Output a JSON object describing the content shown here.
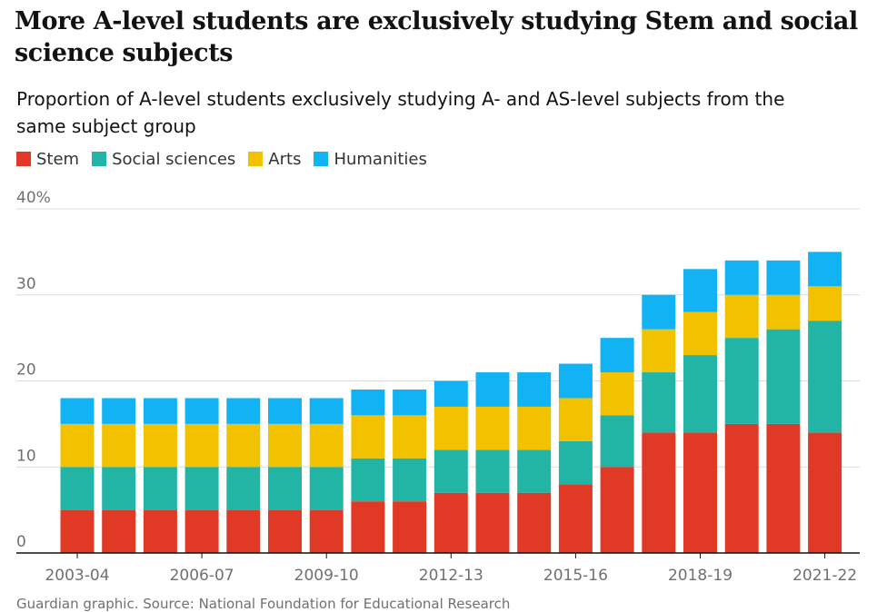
{
  "header": {
    "title": "More A-level students are exclusively studying Stem and social science subjects",
    "subtitle": "Proportion of A-level students exclusively studying A- and AS-level subjects from the same subject group"
  },
  "source": "Guardian graphic. Source: National Foundation for Educational Research",
  "colors": {
    "stem": "#e03a27",
    "social_sciences": "#22b5a6",
    "arts": "#f2c100",
    "humanities": "#12b3f5",
    "grid": "#dcdcdc",
    "axis": "#121212"
  },
  "chart_data": {
    "type": "bar",
    "stacked": true,
    "title": "More A-level students are exclusively studying Stem and social science subjects",
    "subtitle": "Proportion of A-level students exclusively studying A- and AS-level subjects from the same subject group",
    "xlabel": "",
    "ylabel": "",
    "ylim": [
      0,
      40
    ],
    "yticks": [
      "0",
      "10",
      "20",
      "30",
      "40%"
    ],
    "ytick_values": [
      0,
      10,
      20,
      30,
      40
    ],
    "grid": true,
    "legend_position": "top-left",
    "categories": [
      "2003-04",
      "2004-05",
      "2005-06",
      "2006-07",
      "2007-08",
      "2008-09",
      "2009-10",
      "2010-11",
      "2011-12",
      "2012-13",
      "2013-14",
      "2014-15",
      "2015-16",
      "2016-17",
      "2017-18",
      "2018-19",
      "2019-20",
      "2020-21",
      "2021-22"
    ],
    "xtick_labels": [
      "2003-04",
      "2006-07",
      "2009-10",
      "2012-13",
      "2015-16",
      "2018-19",
      "2021-22"
    ],
    "xtick_indices": [
      0,
      3,
      6,
      9,
      12,
      15,
      18
    ],
    "series": [
      {
        "name": "Stem",
        "color_key": "stem",
        "values": [
          5,
          5,
          5,
          5,
          5,
          5,
          5,
          6,
          6,
          7,
          7,
          7,
          8,
          10,
          14,
          14,
          15,
          15,
          14
        ]
      },
      {
        "name": "Social sciences",
        "color_key": "social_sciences",
        "values": [
          5,
          5,
          5,
          5,
          5,
          5,
          5,
          5,
          5,
          5,
          5,
          5,
          5,
          6,
          7,
          9,
          10,
          11,
          13
        ]
      },
      {
        "name": "Arts",
        "color_key": "arts",
        "values": [
          5,
          5,
          5,
          5,
          5,
          5,
          5,
          5,
          5,
          5,
          5,
          5,
          5,
          5,
          5,
          5,
          5,
          4,
          4
        ]
      },
      {
        "name": "Humanities",
        "color_key": "humanities",
        "values": [
          3,
          3,
          3,
          3,
          3,
          3,
          3,
          3,
          3,
          3,
          4,
          4,
          4,
          4,
          4,
          5,
          4,
          4,
          4
        ]
      }
    ]
  }
}
